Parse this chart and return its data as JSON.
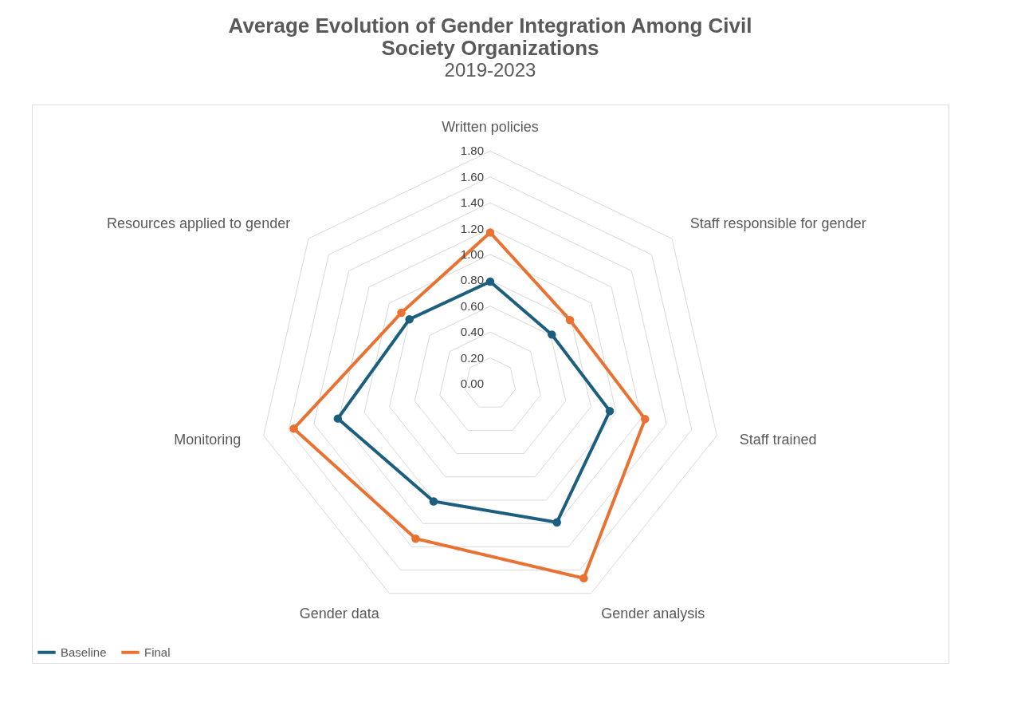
{
  "chart_data": {
    "type": "radar",
    "title": "Average Evolution of Gender Integration  Among Civil Society Organizations",
    "subtitle": "2019-2023",
    "categories": [
      "Written policies",
      "Staff responsible for gender",
      "Staff trained",
      "Gender analysis",
      "Gender data",
      "Monitoring",
      "Resources applied to gender"
    ],
    "series": [
      {
        "name": "Baseline",
        "color": "#1b5e7e",
        "values": [
          0.79,
          0.61,
          0.95,
          1.19,
          1.01,
          1.21,
          0.8
        ]
      },
      {
        "name": "Final",
        "color": "#e97132",
        "values": [
          1.17,
          0.79,
          1.23,
          1.67,
          1.33,
          1.56,
          0.88
        ]
      }
    ],
    "ylim": [
      0,
      1.8
    ],
    "yticks": [
      {
        "value": 0,
        "label": "0.00"
      },
      {
        "value": 0.2,
        "label": "0.20"
      },
      {
        "value": 0.4,
        "label": "0.40"
      },
      {
        "value": 0.6,
        "label": "0.60"
      },
      {
        "value": 0.8,
        "label": "0.80"
      },
      {
        "value": 1.0,
        "label": "1.00"
      },
      {
        "value": 1.2,
        "label": "1.20"
      },
      {
        "value": 1.4,
        "label": "1.40"
      },
      {
        "value": 1.6,
        "label": "1.60"
      },
      {
        "value": 1.8,
        "label": "1.80"
      }
    ],
    "grid": true,
    "marker": "circle",
    "line_style": "solid",
    "legend": "bottom left"
  }
}
